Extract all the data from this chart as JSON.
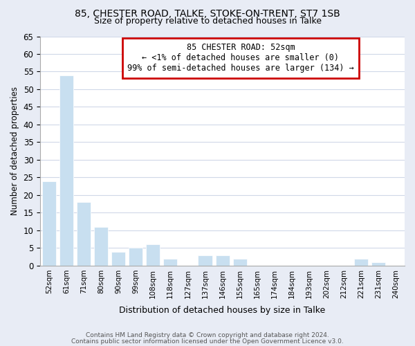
{
  "title1": "85, CHESTER ROAD, TALKE, STOKE-ON-TRENT, ST7 1SB",
  "title2": "Size of property relative to detached houses in Talke",
  "xlabel": "Distribution of detached houses by size in Talke",
  "ylabel": "Number of detached properties",
  "bar_color": "#c8dff0",
  "highlight_color": "#cc0000",
  "categories": [
    "52sqm",
    "61sqm",
    "71sqm",
    "80sqm",
    "90sqm",
    "99sqm",
    "108sqm",
    "118sqm",
    "127sqm",
    "137sqm",
    "146sqm",
    "155sqm",
    "165sqm",
    "174sqm",
    "184sqm",
    "193sqm",
    "202sqm",
    "212sqm",
    "221sqm",
    "231sqm",
    "240sqm"
  ],
  "values": [
    24,
    54,
    18,
    11,
    4,
    5,
    6,
    2,
    0,
    3,
    3,
    2,
    0,
    0,
    0,
    0,
    0,
    0,
    2,
    1,
    0
  ],
  "highlight_bar_index": 0,
  "ylim": [
    0,
    65
  ],
  "yticks": [
    0,
    5,
    10,
    15,
    20,
    25,
    30,
    35,
    40,
    45,
    50,
    55,
    60,
    65
  ],
  "annotation_title": "85 CHESTER ROAD: 52sqm",
  "annotation_line1": "← <1% of detached houses are smaller (0)",
  "annotation_line2": "99% of semi-detached houses are larger (134) →",
  "footer1": "Contains HM Land Registry data © Crown copyright and database right 2024.",
  "footer2": "Contains public sector information licensed under the Open Government Licence v3.0.",
  "fig_bg_color": "#e8ecf5",
  "axes_bg_color": "#ffffff",
  "grid_color": "#d0d8e8"
}
